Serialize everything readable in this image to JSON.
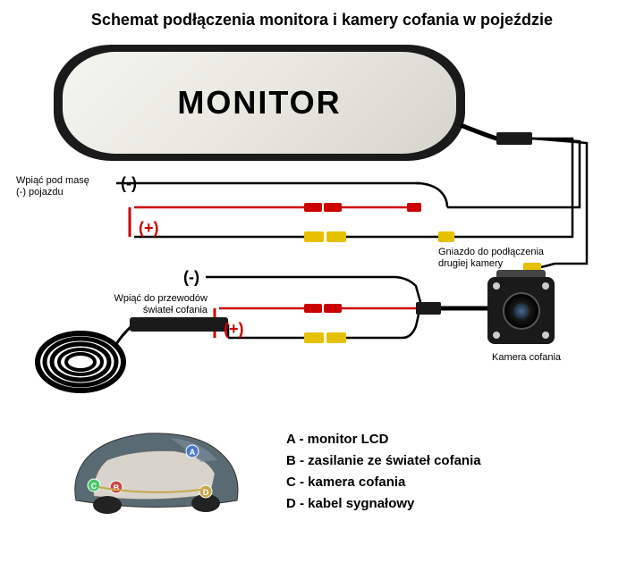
{
  "title": "Schemat podłączenia monitora i kamery cofania w pojeździe",
  "monitor_label": "MONITOR",
  "labels": {
    "ground_vehicle": "Wpiąć pod masę\n(-) pojazdu",
    "reverse_lights": "Wpiąć do przewodów\nświateł cofania",
    "second_camera": "Gniazdo do podłączenia\ndrugiej kamery",
    "camera_caption": "Kamera cofania"
  },
  "polarity": {
    "minus": "(-)",
    "plus": "(+)"
  },
  "legend": {
    "A": "monitor LCD",
    "B": "zasilanie ze świateł cofania",
    "C": "kamera cofania",
    "D": "kabel sygnałowy"
  },
  "colors": {
    "wire_black": "#000000",
    "wire_red": "#cc0000",
    "wire_yellow": "#e5c100",
    "mirror_body": "#1a1a1a",
    "background": "#ffffff"
  },
  "diagram": {
    "type": "wiring-schematic",
    "components": [
      "mirror-monitor",
      "rear-camera",
      "cable-coil",
      "vehicle-cutaway"
    ],
    "connections": [
      {
        "from": "monitor",
        "to": "vehicle-ground",
        "polarity": "-",
        "color": "#000000"
      },
      {
        "from": "monitor",
        "to": "vehicle-power",
        "polarity": "+",
        "color": "#cc0000"
      },
      {
        "from": "monitor",
        "to": "camera-video",
        "color": "#e5c100"
      },
      {
        "from": "monitor",
        "to": "second-camera-jack",
        "color": "#e5c100"
      },
      {
        "from": "camera",
        "to": "reverse-light-ground",
        "polarity": "-",
        "color": "#000000"
      },
      {
        "from": "camera",
        "to": "reverse-light-power",
        "polarity": "+",
        "color": "#cc0000"
      },
      {
        "from": "camera",
        "to": "signal-cable",
        "color": "#000000"
      }
    ]
  }
}
